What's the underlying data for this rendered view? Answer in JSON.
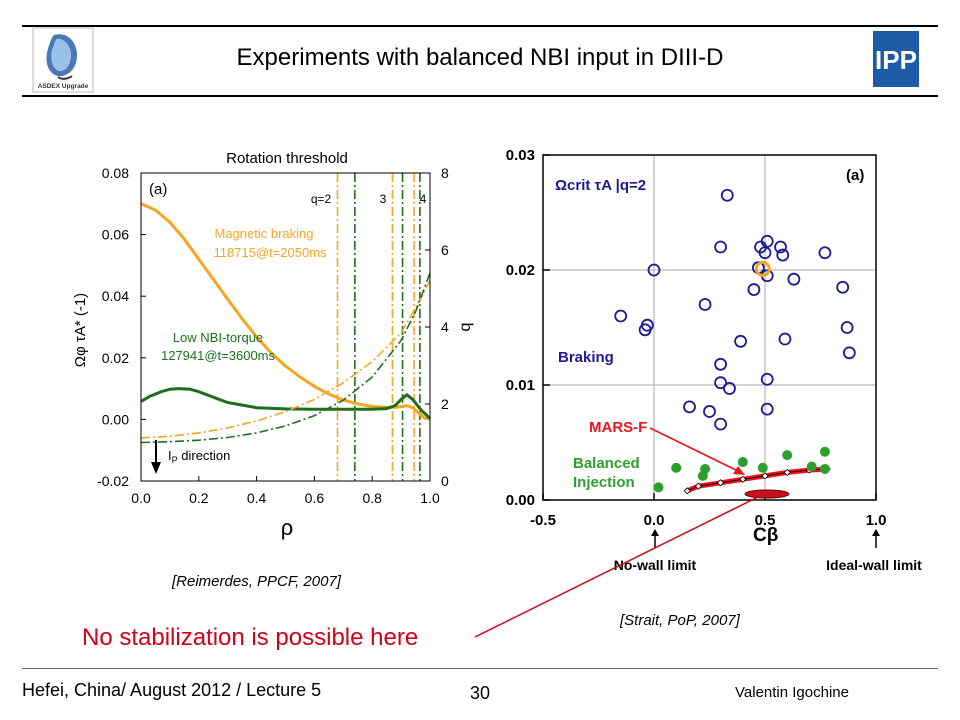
{
  "slide": {
    "title": "Experiments with balanced NBI input in DIII-D",
    "logo_left_label": "ASDEX Upgrade",
    "logo_right_label": "IPP",
    "citation_left": "[Reimerdes, PPCF, 2007]",
    "citation_right": "[Strait, PoP, 2007]",
    "annotation": "No stabilization is possible here",
    "footer_left": "Hefei, China/ August 2012 / Lecture 5",
    "page_number": "30",
    "author": "Valentin Igochine",
    "colors": {
      "annotation": "#d0021b",
      "rule": "#000000"
    }
  },
  "chart_data": [
    {
      "type": "line",
      "panel": "(a)",
      "title": "Rotation threshold",
      "xlabel": "ρ",
      "ylabel": "Ωφ τA* (-1)",
      "y2label": "q",
      "xlim": [
        0.0,
        1.0
      ],
      "ylim": [
        -0.02,
        0.08
      ],
      "y2lim": [
        0,
        8
      ],
      "xticks": [
        "0.0",
        "0.2",
        "0.4",
        "0.6",
        "0.8",
        "1.0"
      ],
      "yticks": [
        "0.08",
        "0.06",
        "0.04",
        "0.02",
        "0.00",
        "-0.02"
      ],
      "y2ticks": [
        "8",
        "6",
        "4",
        "2",
        "0"
      ],
      "q_labels": [
        "q=2",
        "3",
        "4"
      ],
      "series": [
        {
          "name": "Magnetic braking",
          "shot": "118715@t=2050ms",
          "color": "#f5a623",
          "style": "solid",
          "x": [
            0.0,
            0.05,
            0.1,
            0.15,
            0.2,
            0.25,
            0.3,
            0.35,
            0.4,
            0.45,
            0.5,
            0.55,
            0.6,
            0.65,
            0.7,
            0.75,
            0.8,
            0.85,
            0.88,
            0.9,
            0.92,
            0.94,
            0.96,
            0.98,
            1.0
          ],
          "y": [
            0.07,
            0.068,
            0.064,
            0.0585,
            0.052,
            0.0455,
            0.039,
            0.0327,
            0.0268,
            0.0216,
            0.0173,
            0.0138,
            0.0107,
            0.0082,
            0.0063,
            0.005,
            0.0042,
            0.0039,
            0.0039,
            0.0042,
            0.0045,
            0.0038,
            0.0022,
            0.0005,
            0.0
          ]
        },
        {
          "name": "Low NBI-torque",
          "shot": "127941@t=3600ms",
          "color": "#1e6e1e",
          "style": "solid",
          "x": [
            0.0,
            0.03,
            0.07,
            0.1,
            0.13,
            0.17,
            0.2,
            0.25,
            0.3,
            0.4,
            0.5,
            0.6,
            0.7,
            0.8,
            0.85,
            0.88,
            0.9,
            0.92,
            0.94,
            0.97,
            1.0
          ],
          "y": [
            0.0058,
            0.0075,
            0.009,
            0.0098,
            0.01,
            0.0098,
            0.009,
            0.0072,
            0.0055,
            0.0038,
            0.0034,
            0.0033,
            0.0033,
            0.0033,
            0.0035,
            0.0045,
            0.0065,
            0.008,
            0.0065,
            0.003,
            0.0003
          ]
        },
        {
          "name": "q (braking)",
          "axis": "y2",
          "color": "#f5a623",
          "style": "dashdot",
          "x": [
            0.0,
            0.1,
            0.2,
            0.3,
            0.4,
            0.5,
            0.6,
            0.7,
            0.8,
            0.9,
            0.95,
            1.0
          ],
          "y": [
            1.12,
            1.16,
            1.25,
            1.38,
            1.56,
            1.8,
            2.12,
            2.55,
            3.1,
            3.85,
            4.5,
            5.2
          ]
        },
        {
          "name": "q (low NBI-torque)",
          "axis": "y2",
          "color": "#1e6e1e",
          "style": "dashdot",
          "x": [
            0.0,
            0.1,
            0.2,
            0.3,
            0.4,
            0.5,
            0.6,
            0.7,
            0.8,
            0.9,
            0.95,
            1.0
          ],
          "y": [
            1.0,
            1.02,
            1.06,
            1.13,
            1.25,
            1.43,
            1.7,
            2.1,
            2.7,
            3.65,
            4.4,
            5.4
          ]
        }
      ],
      "vlines": [
        {
          "x": 0.68,
          "color": "#f5a623"
        },
        {
          "x": 0.74,
          "color": "#1e6e1e"
        },
        {
          "x": 0.87,
          "color": "#f5a623"
        },
        {
          "x": 0.905,
          "color": "#1e6e1e"
        },
        {
          "x": 0.945,
          "color": "#f5a623"
        },
        {
          "x": 0.965,
          "color": "#1e6e1e"
        }
      ],
      "ip_label": "I",
      "ip_subscript": "P",
      "ip_suffix": " direction"
    },
    {
      "type": "scatter",
      "panel": "(a)",
      "xlabel": "Cβ",
      "ylabel": "Ωcrit τA |q=2",
      "xlim": [
        -0.5,
        1.0
      ],
      "ylim": [
        0.0,
        0.03
      ],
      "xticks": [
        "-0.5",
        "0.0",
        "0.5",
        "1.0"
      ],
      "yticks": [
        "0.03",
        "0.02",
        "0.01",
        "0.00"
      ],
      "series": [
        {
          "name": "Braking",
          "color": "#1b1b8f",
          "marker": "open-circle",
          "points": [
            [
              0.33,
              0.0265
            ],
            [
              0.3,
              0.022
            ],
            [
              0.48,
              0.022
            ],
            [
              0.51,
              0.0225
            ],
            [
              0.5,
              0.0215
            ],
            [
              0.57,
              0.022
            ],
            [
              0.58,
              0.0213
            ],
            [
              0.77,
              0.0215
            ],
            [
              0.0,
              0.02
            ],
            [
              0.47,
              0.0202
            ],
            [
              0.51,
              0.0195
            ],
            [
              0.63,
              0.0192
            ],
            [
              0.45,
              0.0183
            ],
            [
              0.85,
              0.0185
            ],
            [
              0.23,
              0.017
            ],
            [
              -0.15,
              0.016
            ],
            [
              -0.04,
              0.0148
            ],
            [
              -0.03,
              0.0152
            ],
            [
              0.87,
              0.015
            ],
            [
              0.39,
              0.0138
            ],
            [
              0.59,
              0.014
            ],
            [
              0.88,
              0.0128
            ],
            [
              0.3,
              0.0118
            ],
            [
              0.3,
              0.0102
            ],
            [
              0.51,
              0.0105
            ],
            [
              0.34,
              0.0097
            ],
            [
              0.16,
              0.0081
            ],
            [
              0.25,
              0.0077
            ],
            [
              0.51,
              0.0079
            ],
            [
              0.3,
              0.0066
            ]
          ]
        },
        {
          "name": "Balanced Injection",
          "color": "#2e9e2e",
          "marker": "filled-circle",
          "points": [
            [
              0.77,
              0.0042
            ],
            [
              0.6,
              0.0039
            ],
            [
              0.4,
              0.0033
            ],
            [
              0.49,
              0.0028
            ],
            [
              0.71,
              0.0029
            ],
            [
              0.77,
              0.0027
            ],
            [
              0.1,
              0.0028
            ],
            [
              0.23,
              0.0027
            ],
            [
              0.22,
              0.0021
            ],
            [
              0.02,
              0.0011
            ]
          ]
        },
        {
          "name": "MARS-F",
          "color": "#e8141c",
          "marker": "line",
          "points": [
            [
              0.15,
              0.0008
            ],
            [
              0.2,
              0.0012
            ],
            [
              0.3,
              0.0015
            ],
            [
              0.4,
              0.0018
            ],
            [
              0.5,
              0.0021
            ],
            [
              0.6,
              0.0024
            ],
            [
              0.7,
              0.0026
            ],
            [
              0.78,
              0.0027
            ]
          ]
        },
        {
          "name": "Highlighted shot",
          "color": "#f5a623",
          "marker": "open-circle",
          "points": [
            [
              0.49,
              0.0201
            ]
          ]
        }
      ],
      "annotations": [
        "(a)",
        "Braking",
        "MARS-F",
        "Balanced",
        "Injection",
        "No-wall limit",
        "Ideal-wall limit"
      ]
    }
  ]
}
